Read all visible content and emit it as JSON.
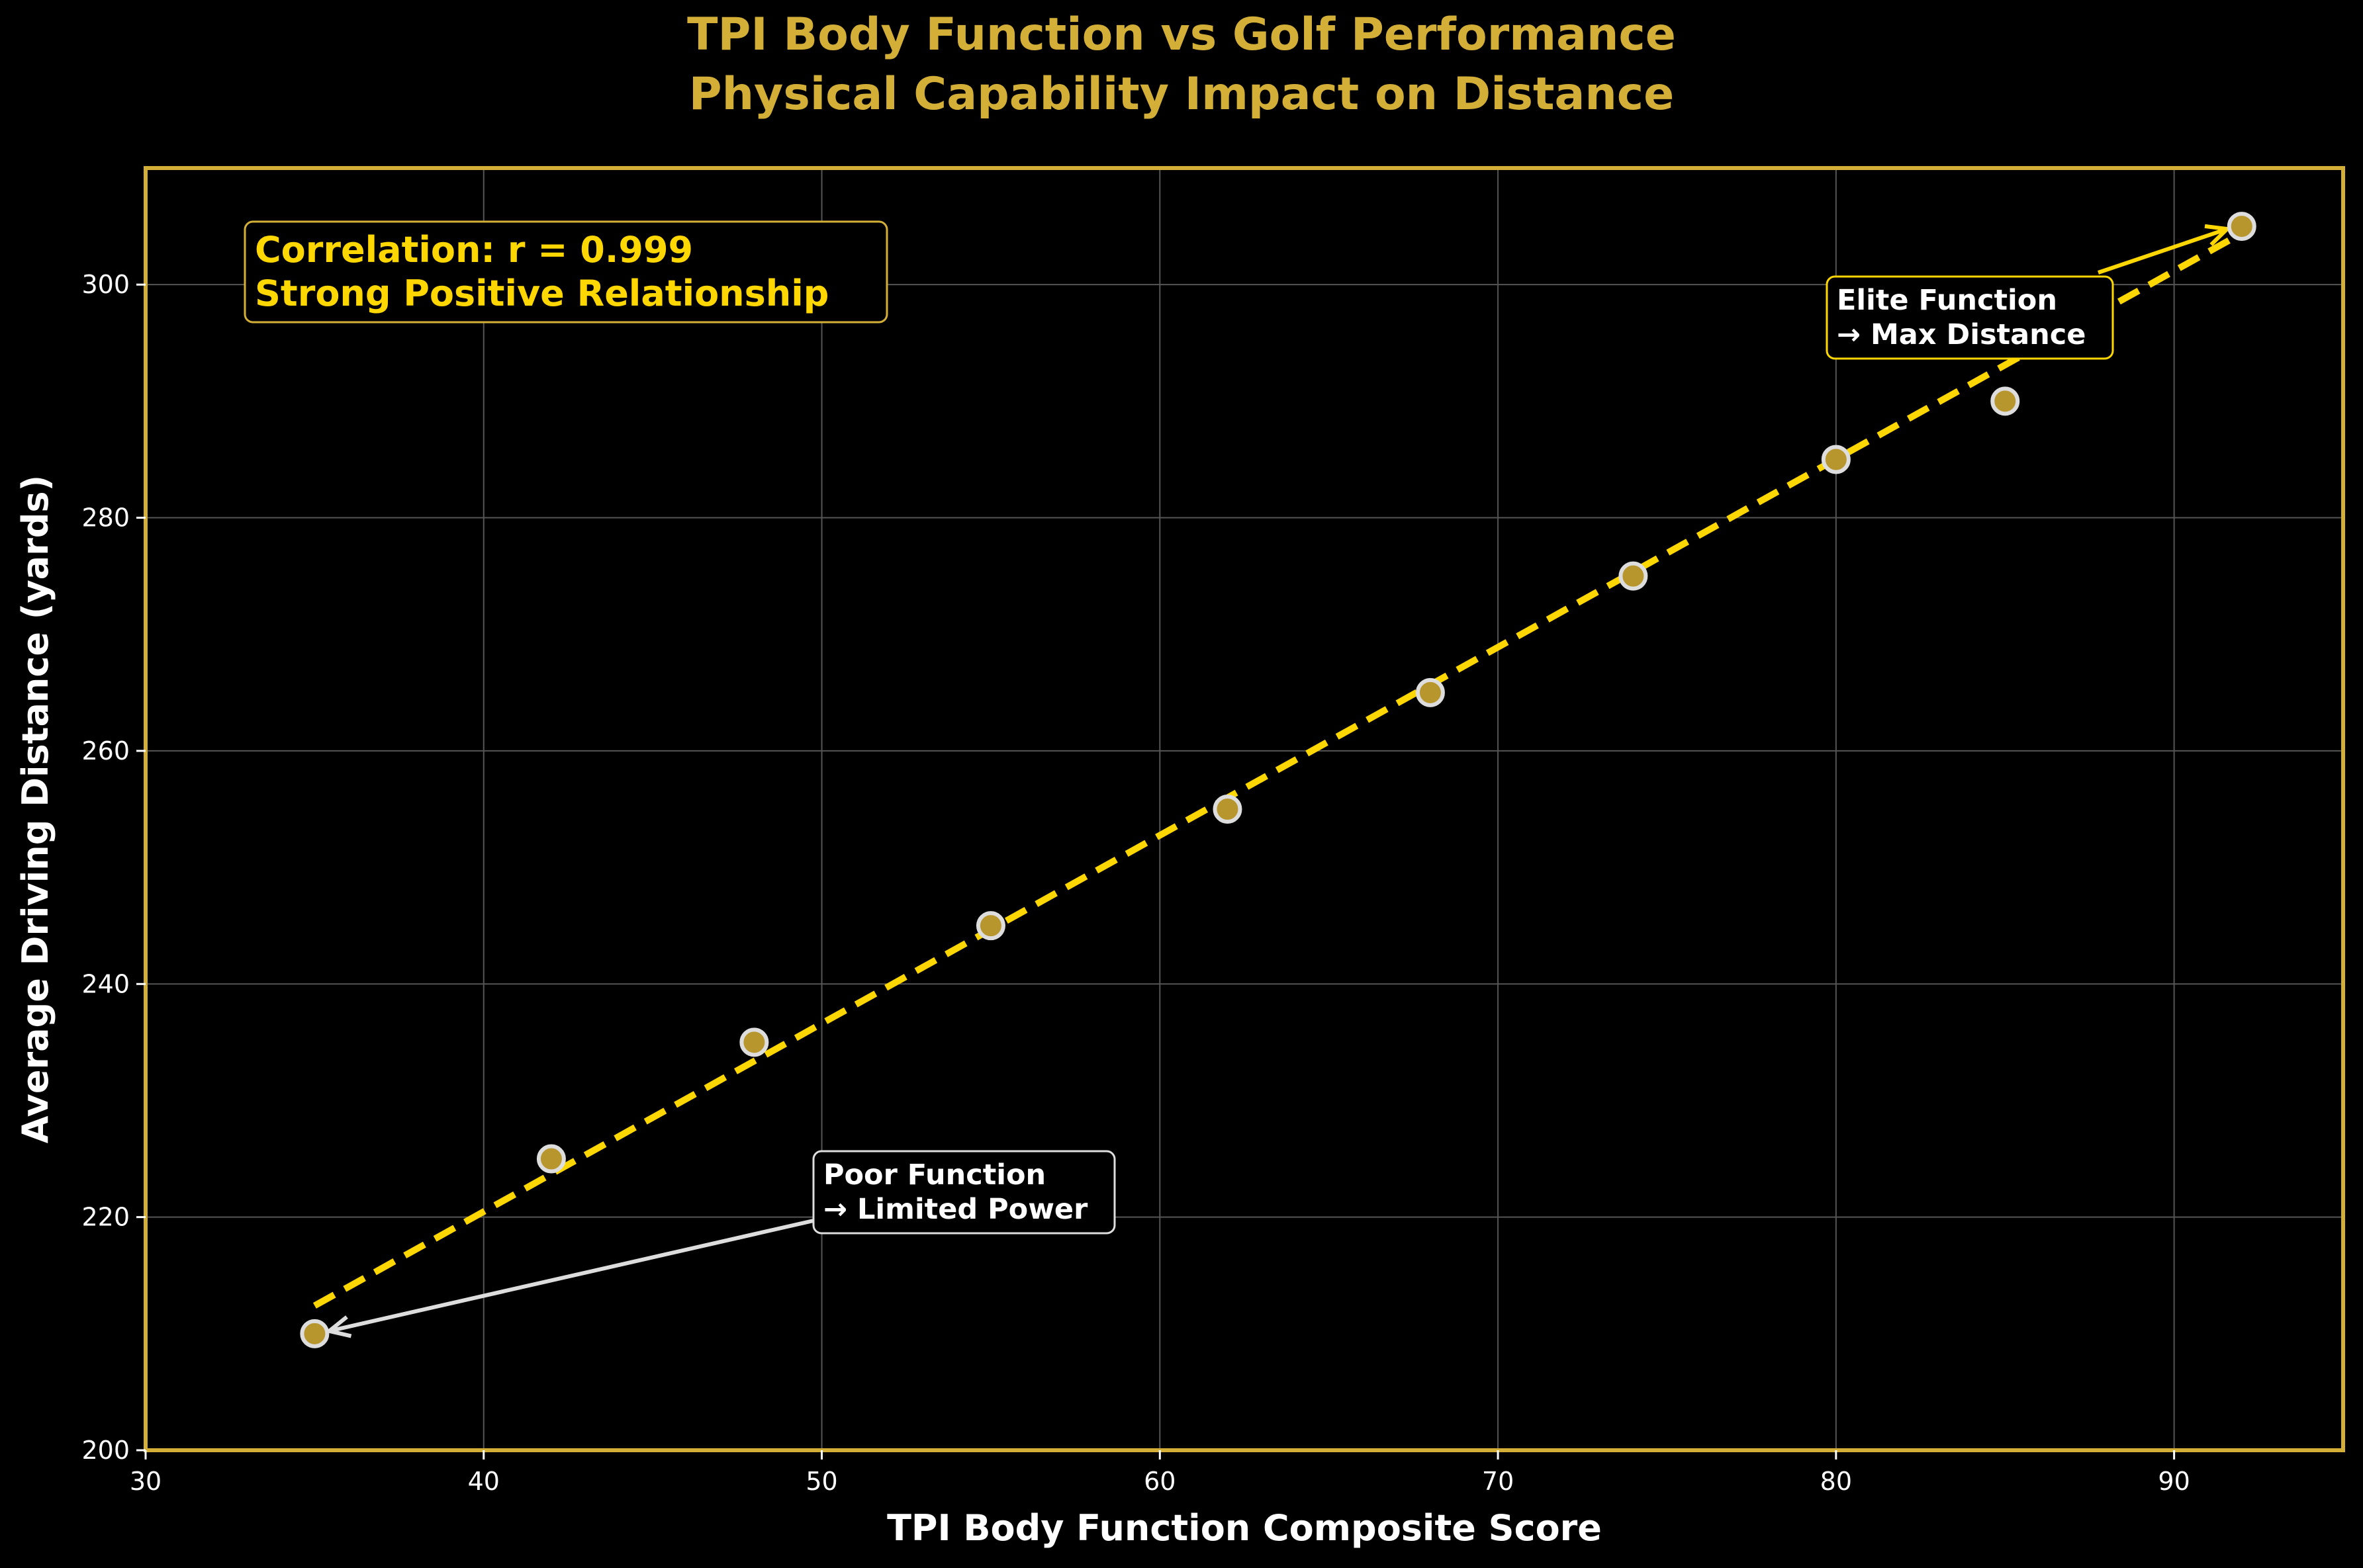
{
  "chart_data": {
    "type": "scatter",
    "title": "TPI Body Function vs Golf Performance",
    "subtitle": "Physical Capability Impact on Distance",
    "xlabel": "TPI Body Function Composite Score",
    "ylabel": "Average Driving Distance (yards)",
    "xlim": [
      30,
      95
    ],
    "ylim": [
      200,
      310
    ],
    "xticks": [
      30,
      40,
      50,
      60,
      70,
      80,
      90
    ],
    "yticks": [
      200,
      220,
      240,
      260,
      280,
      300
    ],
    "grid": true,
    "points": {
      "x": [
        35,
        42,
        48,
        55,
        62,
        68,
        74,
        80,
        85,
        92
      ],
      "y": [
        210,
        225,
        235,
        245,
        255,
        265,
        275,
        285,
        290,
        305
      ]
    },
    "trendline": {
      "x": [
        35,
        92
      ],
      "y": [
        212.4,
        304.4
      ],
      "style": "dashed"
    },
    "correlation_box": {
      "line1": "Correlation: r = 0.999",
      "line2": "Strong Positive Relationship"
    },
    "annotations": [
      {
        "line1": "Poor Function",
        "line2": "→ Limited Power",
        "target": [
          35,
          210
        ],
        "text_at": [
          50,
          222
        ]
      },
      {
        "line1": "Elite Function",
        "line2": "→ Max Distance",
        "target": [
          92,
          305
        ],
        "text_at": [
          80,
          297
        ]
      }
    ]
  },
  "colors": {
    "background": "#000000",
    "accent_gold": "#d4af37",
    "trend_yellow": "#ffd700",
    "marker_fill": "#b8962e",
    "marker_edge": "#dddddd",
    "grid": "#555555",
    "text": "#ffffff"
  }
}
